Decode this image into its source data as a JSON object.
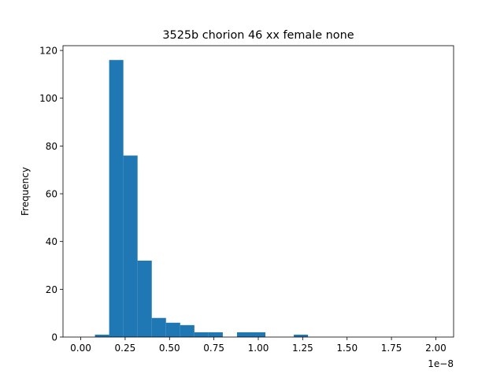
{
  "chart_data": {
    "type": "bar",
    "title": "3525b chorion 46 xx female none",
    "xlabel": "",
    "ylabel": "Frequency",
    "x_offset_text": "1e−8",
    "xlim": [
      -0.1,
      2.1
    ],
    "ylim": [
      0,
      122
    ],
    "x_ticks": [
      0.0,
      0.25,
      0.5,
      0.75,
      1.0,
      1.25,
      1.5,
      1.75,
      2.0
    ],
    "x_tick_labels": [
      "0.00",
      "0.25",
      "0.50",
      "0.75",
      "1.00",
      "1.25",
      "1.50",
      "1.75",
      "2.00"
    ],
    "y_ticks": [
      0,
      20,
      40,
      60,
      80,
      100,
      120
    ],
    "y_tick_labels": [
      "0",
      "20",
      "40",
      "60",
      "80",
      "100",
      "120"
    ],
    "bin_edges": [
      0.0,
      0.08,
      0.16,
      0.24,
      0.32,
      0.4,
      0.48,
      0.56,
      0.64,
      0.72,
      0.8,
      0.88,
      0.96,
      1.04,
      1.12,
      1.2,
      1.28,
      1.36,
      1.44,
      1.52,
      1.6,
      1.68,
      1.76,
      1.84,
      1.92,
      2.0
    ],
    "values": [
      0,
      1,
      116,
      76,
      32,
      8,
      6,
      5,
      2,
      2,
      0,
      2,
      2,
      0,
      0,
      1,
      0,
      0,
      0,
      0,
      0,
      0,
      0,
      0,
      0
    ],
    "bar_color": "#1f77b4",
    "grid": false,
    "legend": "none"
  }
}
